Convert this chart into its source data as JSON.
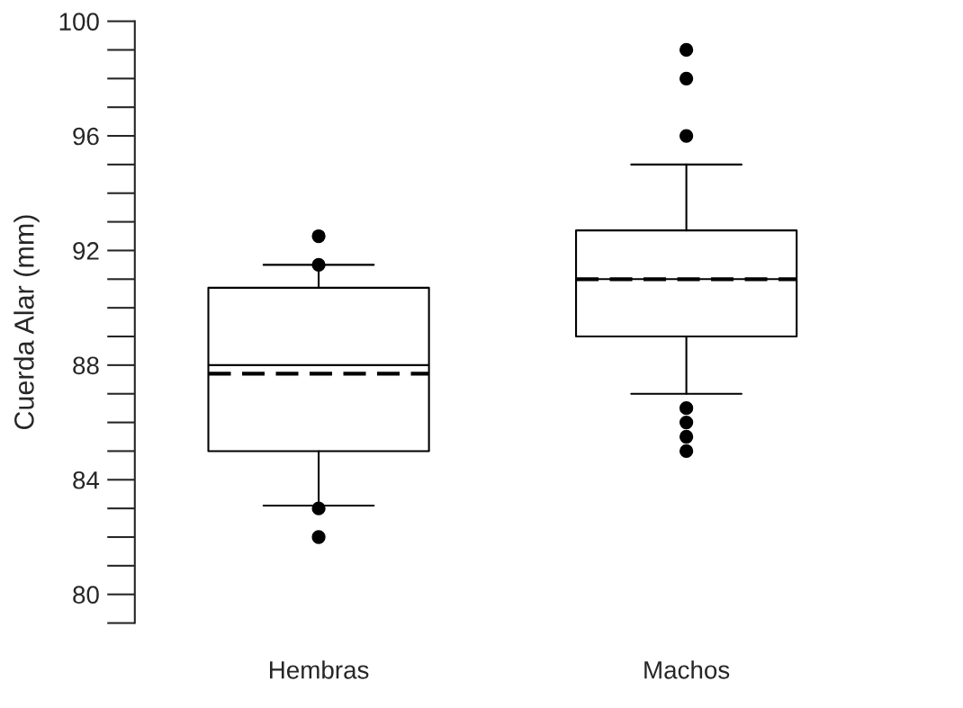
{
  "chart_data": {
    "type": "box",
    "ylabel": "Cuerda Alar (mm)",
    "categories": [
      "Hembras",
      "Machos"
    ],
    "boxes": [
      {
        "low": 83.1,
        "q1": 85.0,
        "median": 88.0,
        "q3": 90.7,
        "high": 91.5,
        "mean": 87.7,
        "outliers": [
          92.5,
          91.5,
          83.0,
          82.0
        ]
      },
      {
        "low": 87.0,
        "q1": 89.0,
        "median": 91.0,
        "q3": 92.7,
        "high": 95.0,
        "mean": 91.0,
        "outliers": [
          99.0,
          98.0,
          96.0,
          86.5,
          86.0,
          85.5,
          85.0
        ]
      }
    ],
    "ylim": [
      79,
      100
    ],
    "yticks": [
      80,
      84,
      88,
      92,
      96,
      100
    ],
    "grid": false
  }
}
